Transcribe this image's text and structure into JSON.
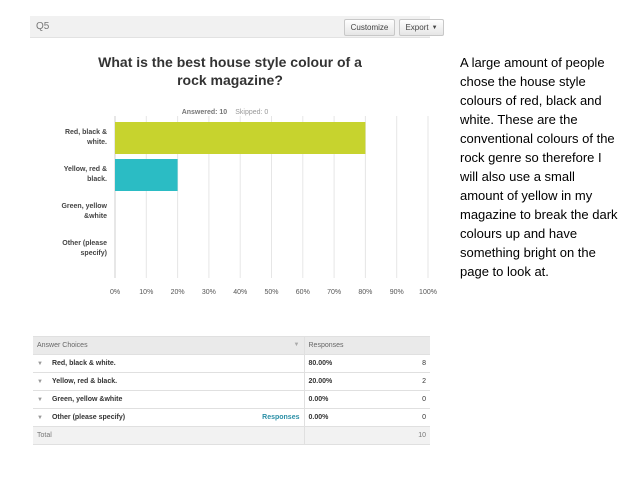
{
  "panel": {
    "question_number": "Q5",
    "customize_label": "Customize",
    "export_label": "Export",
    "title": "What is the best house style colour of a rock magazine?",
    "answered": "Answered: 10",
    "skipped": "Skipped: 0"
  },
  "chart_data": {
    "type": "bar",
    "orientation": "horizontal",
    "title": "What is the best house style colour of a rock magazine?",
    "categories": [
      "Red, black & white.",
      "Yellow, red & black.",
      "Green, yellow &white",
      "Other (please specify)"
    ],
    "category_lines": [
      [
        "Red, black &",
        "white."
      ],
      [
        "Yellow, red &",
        "black."
      ],
      [
        "Green, yellow",
        "&white"
      ],
      [
        "Other (please",
        "specify)"
      ]
    ],
    "values": [
      80,
      20,
      0,
      0
    ],
    "bar_colors": [
      "#c7d32e",
      "#2bbcc4",
      "#9a9a9a",
      "#9a9a9a"
    ],
    "xlim": [
      0,
      100
    ],
    "x_ticks": [
      "0%",
      "10%",
      "20%",
      "30%",
      "40%",
      "50%",
      "60%",
      "70%",
      "80%",
      "90%",
      "100%"
    ],
    "grid": true
  },
  "table": {
    "headers": [
      "Answer Choices",
      "Responses",
      ""
    ],
    "rows": [
      {
        "choice": "Red, black & white.",
        "percent": "80.00%",
        "count": "8",
        "link": ""
      },
      {
        "choice": "Yellow, red & black.",
        "percent": "20.00%",
        "count": "2",
        "link": ""
      },
      {
        "choice": "Green, yellow &white",
        "percent": "0.00%",
        "count": "0",
        "link": ""
      },
      {
        "choice": "Other (please specify)",
        "percent": "0.00%",
        "count": "0",
        "link": "Responses"
      }
    ],
    "total_label": "Total",
    "total_count": "10"
  },
  "description": "A large amount of people chose the house style colours of red, black and white. These are the conventional colours of the rock genre so therefore I will also use a small amount of yellow in my magazine to break the dark colours up and have something bright on the page to look at."
}
